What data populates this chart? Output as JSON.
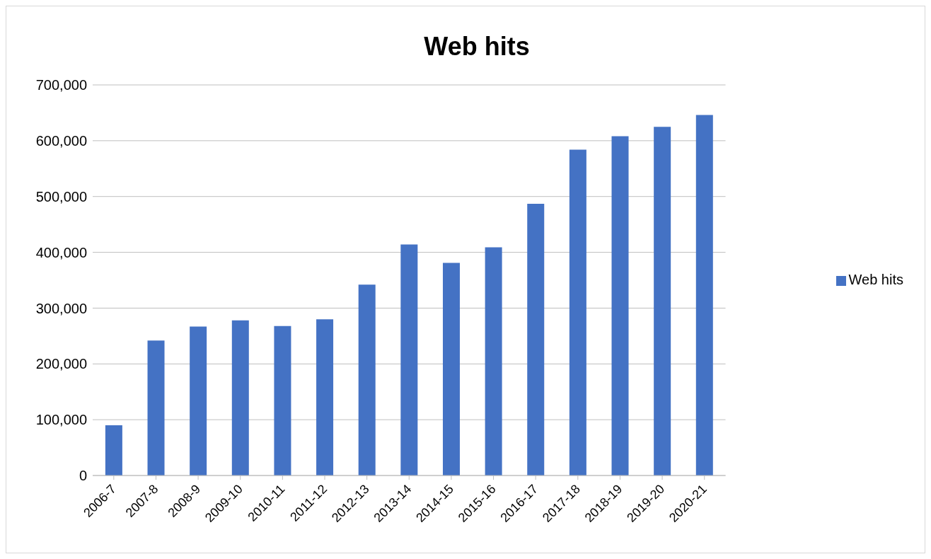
{
  "chart_data": {
    "type": "bar",
    "title": "Web hits",
    "categories": [
      "2006-7",
      "2007-8",
      "2008-9",
      "2009-10",
      "2010-11",
      "2011-12",
      "2012-13",
      "2013-14",
      "2014-15",
      "2015-16",
      "2016-17",
      "2017-18",
      "2018-19",
      "2019-20",
      "2020-21"
    ],
    "series": [
      {
        "name": "Web hits",
        "color": "#4472c4",
        "values": [
          90000,
          242000,
          267000,
          278000,
          268000,
          280000,
          342000,
          414000,
          381000,
          409000,
          487000,
          584000,
          608000,
          625000,
          646000
        ]
      }
    ],
    "ylim": [
      0,
      700000
    ],
    "yticks": [
      {
        "value": 0,
        "label": "0"
      },
      {
        "value": 100000,
        "label": "100,000"
      },
      {
        "value": 200000,
        "label": "200,000"
      },
      {
        "value": 300000,
        "label": "300,000"
      },
      {
        "value": 400000,
        "label": "400,000"
      },
      {
        "value": 500000,
        "label": "500,000"
      },
      {
        "value": 600000,
        "label": "600,000"
      },
      {
        "value": 700000,
        "label": "700,000"
      }
    ],
    "grid": "y",
    "legend": "right"
  }
}
